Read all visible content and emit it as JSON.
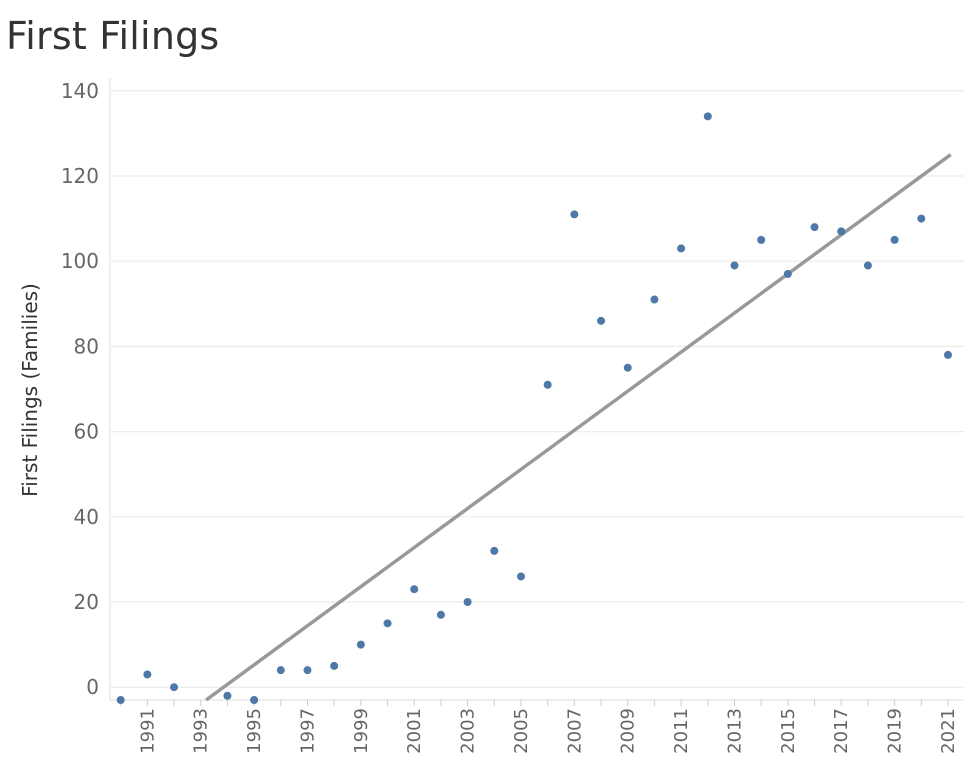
{
  "title": "First Filings",
  "chart_data": {
    "type": "scatter",
    "title": "First Filings",
    "xlabel": "",
    "ylabel": "First Filings (Families)",
    "x_tick_labels": [
      "1991",
      "1993",
      "1995",
      "1997",
      "1999",
      "2001",
      "2003",
      "2005",
      "2007",
      "2009",
      "2011",
      "2013",
      "2015",
      "2017",
      "2019",
      "2021"
    ],
    "y_tick_labels": [
      "0",
      "20",
      "40",
      "60",
      "80",
      "100",
      "120",
      "140"
    ],
    "y_ticks": [
      0,
      20,
      40,
      60,
      80,
      100,
      120,
      140
    ],
    "xlim": [
      1989.6,
      2021.6
    ],
    "ylim": [
      -3,
      143
    ],
    "grid": "horizontal",
    "colors": {
      "points": "#4e79a7",
      "trend": "#999999",
      "grid": "#ececec"
    },
    "points": [
      {
        "x": 1990,
        "y": -3
      },
      {
        "x": 1991,
        "y": 3
      },
      {
        "x": 1992,
        "y": 0
      },
      {
        "x": 1994,
        "y": -2
      },
      {
        "x": 1995,
        "y": -3
      },
      {
        "x": 1996,
        "y": 4
      },
      {
        "x": 1997,
        "y": 4
      },
      {
        "x": 1998,
        "y": 5
      },
      {
        "x": 1999,
        "y": 10
      },
      {
        "x": 2000,
        "y": 15
      },
      {
        "x": 2001,
        "y": 23
      },
      {
        "x": 2002,
        "y": 17
      },
      {
        "x": 2003,
        "y": 20
      },
      {
        "x": 2004,
        "y": 32
      },
      {
        "x": 2005,
        "y": 26
      },
      {
        "x": 2006,
        "y": 71
      },
      {
        "x": 2007,
        "y": 111
      },
      {
        "x": 2008,
        "y": 86
      },
      {
        "x": 2009,
        "y": 75
      },
      {
        "x": 2010,
        "y": 91
      },
      {
        "x": 2011,
        "y": 103
      },
      {
        "x": 2012,
        "y": 134
      },
      {
        "x": 2013,
        "y": 99
      },
      {
        "x": 2014,
        "y": 105
      },
      {
        "x": 2015,
        "y": 97
      },
      {
        "x": 2016,
        "y": 108
      },
      {
        "x": 2017,
        "y": 107
      },
      {
        "x": 2018,
        "y": 99
      },
      {
        "x": 2019,
        "y": 105
      },
      {
        "x": 2020,
        "y": 110
      },
      {
        "x": 2021,
        "y": 78
      }
    ],
    "trend_line": {
      "x": [
        1993.2,
        2021.1
      ],
      "y": [
        -3,
        125
      ]
    }
  }
}
